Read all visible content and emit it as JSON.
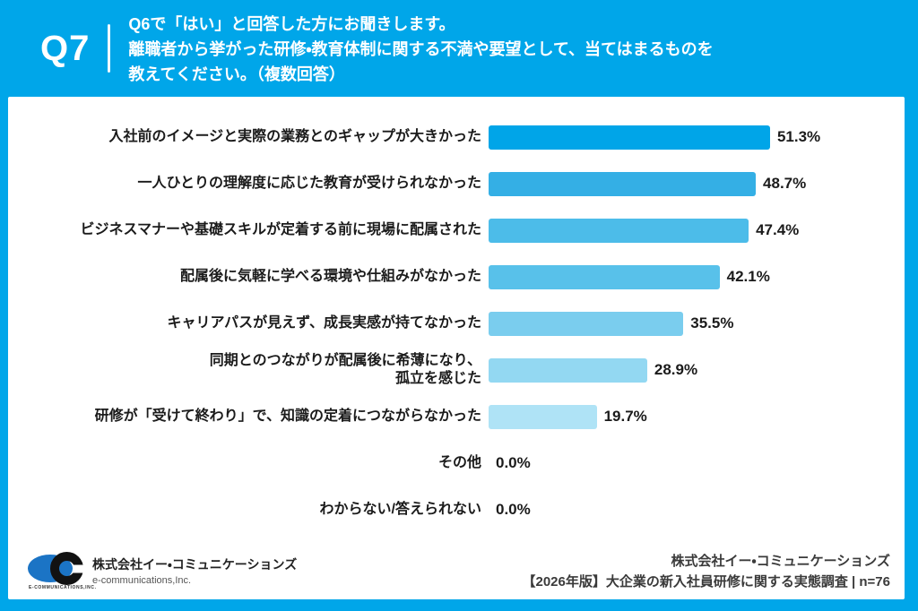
{
  "header": {
    "question_number": "Q7",
    "question_lines": [
      "Q6で「はい」と回答した方にお聞きします。",
      "離職者から挙がった研修・教育体制に関する不満や要望として、当てはまるものを",
      "教えてください。（複数回答）"
    ]
  },
  "chart_data": {
    "type": "bar",
    "orientation": "horizontal",
    "categories": [
      "入社前のイメージと実際の業務とのギャップが大きかった",
      "一人ひとりの理解度に応じた教育が受けられなかった",
      "ビジネスマナーや基礎スキルが定着する前に現場に配属された",
      "配属後に気軽に学べる環境や仕組みがなかった",
      "キャリアパスが見えず、成長実感が持てなかった",
      "同期とのつながりが配属後に希薄になり、\n孤立を感じた",
      "研修が「受けて終わり」で、知識の定着につながらなかった",
      "その他",
      "わからない/答えられない"
    ],
    "values": [
      51.3,
      48.7,
      47.4,
      42.1,
      35.5,
      28.9,
      19.7,
      0.0,
      0.0
    ],
    "value_labels": [
      "51.3%",
      "48.7%",
      "47.4%",
      "42.1%",
      "35.5%",
      "28.9%",
      "19.7%",
      "0.0%",
      "0.0%"
    ],
    "bar_colors": [
      "#00A5E8",
      "#34AFE5",
      "#4CBCE9",
      "#58C1EA",
      "#7ACDEE",
      "#93D8F2",
      "#AFE3F6",
      "#AFE3F6",
      "#AFE3F6"
    ],
    "xlim": [
      0,
      100
    ],
    "grid": false,
    "legend": false
  },
  "footer": {
    "logo": {
      "caption": "E-COMMUNICATIONS,INC.",
      "company_name_jp": "株式会社イー・コミュニケーションズ",
      "company_name_en": "e-communications,Inc."
    },
    "credit_company": "株式会社イー・コミュニケーションズ",
    "credit_survey": "【2026年版】大企業の新入社員研修に関する実態調査 | n=76"
  },
  "colors": {
    "frame_blue": "#00A6E9",
    "panel_white": "#FFFFFF",
    "label_text": "#1B1B1B",
    "credit_text": "#3A3A3A",
    "logo_blue": "#1B74C5"
  }
}
